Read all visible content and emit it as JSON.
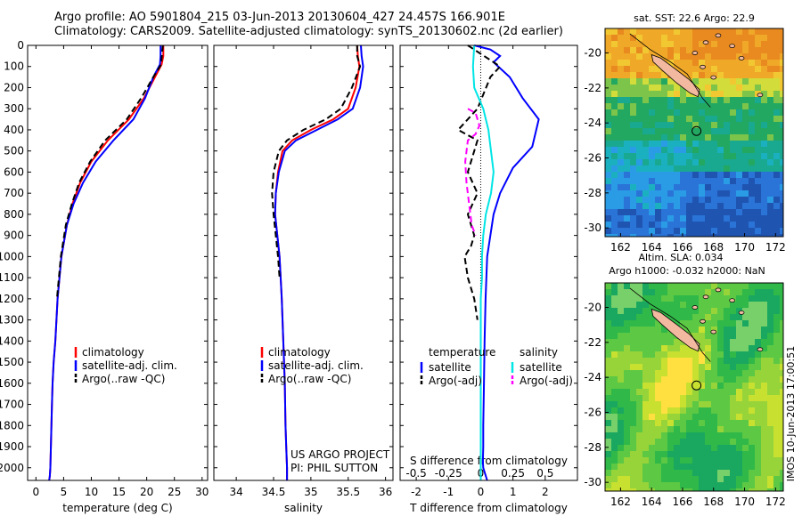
{
  "title_line1": "Argo profile: AO 5901804_215 03-Jun-2013 20130604_427 24.457S 166.901E",
  "title_line2": "Climatology: CARS2009. Satellite-adjusted climatology: synTS_20130602.nc (2d earlier)",
  "watermark": "IMOS 10-Jun-2013 17:00:51",
  "colors": {
    "climatology": "#ff0000",
    "satellite": "#0000ff",
    "argo": "#000000",
    "salinity_satellite": "#00e5e5",
    "salinity_argo": "#ff00ff"
  },
  "chart_data": [
    {
      "type": "line",
      "xlabel": "temperature (deg C)",
      "ylabel": "",
      "xlim": [
        -1.5,
        31
      ],
      "ylim": [
        2060,
        0
      ],
      "xticks": [
        "0",
        "5",
        "10",
        "15",
        "20",
        "25",
        "30"
      ],
      "yticks": [
        "0",
        "100",
        "200",
        "300",
        "400",
        "500",
        "600",
        "700",
        "800",
        "900",
        "1000",
        "1100",
        "1200",
        "1300",
        "1400",
        "1500",
        "1600",
        "1700",
        "1800",
        "1900",
        "2000"
      ],
      "legend": [
        "climatology",
        "satellite-adj. clim.",
        "Argo(..raw -QC)"
      ],
      "legend_position": "lower-middle",
      "series": [
        {
          "name": "climatology",
          "style": "solid",
          "color": "#ff0000",
          "x": [
            23.0,
            23.0,
            22.7,
            21.5,
            19.5,
            16.8,
            13.0,
            10.0,
            8.0,
            6.6,
            5.6,
            4.6,
            3.9,
            3.5,
            3.2,
            3.0,
            2.9,
            2.8,
            2.7,
            2.6,
            2.5,
            2.4
          ],
          "y": [
            0,
            50,
            90,
            150,
            250,
            350,
            450,
            550,
            650,
            750,
            850,
            1000,
            1200,
            1400,
            1500,
            1600,
            1700,
            1800,
            1900,
            2000,
            2040,
            2060
          ]
        },
        {
          "name": "satellite-adj. clim.",
          "style": "solid",
          "color": "#0000ff",
          "x": [
            22.5,
            22.5,
            22.4,
            21.2,
            19.7,
            17.6,
            14.0,
            10.8,
            8.5,
            6.8,
            5.6,
            4.6,
            3.9,
            3.5,
            3.2,
            3.0,
            2.9,
            2.8,
            2.7,
            2.6,
            2.5,
            2.4
          ],
          "y": [
            0,
            50,
            90,
            150,
            250,
            350,
            450,
            550,
            650,
            750,
            850,
            1000,
            1200,
            1400,
            1500,
            1600,
            1700,
            1800,
            1900,
            2000,
            2040,
            2060
          ]
        },
        {
          "name": "Argo(..raw -QC)",
          "style": "dashed",
          "color": "#000000",
          "x": [
            22.9,
            22.8,
            22.6,
            21.2,
            19.0,
            16.4,
            12.5,
            9.8,
            7.8,
            6.5,
            5.4,
            4.5,
            3.8
          ],
          "y": [
            0,
            30,
            90,
            150,
            250,
            350,
            450,
            550,
            650,
            750,
            850,
            1000,
            1200
          ]
        }
      ]
    },
    {
      "type": "line",
      "xlabel": "salinity",
      "ylabel": "",
      "xlim": [
        33.7,
        36.1
      ],
      "ylim": [
        2060,
        0
      ],
      "xticks": [
        "34",
        "34.5",
        "35",
        "35.5",
        "36"
      ],
      "legend": [
        "climatology",
        "satellite-adj. clim.",
        "Argo(..raw -QC)"
      ],
      "legend_position": "lower-middle",
      "annotations": [
        "US ARGO PROJECT",
        "PI: PHIL SUTTON"
      ],
      "series": [
        {
          "name": "climatology",
          "style": "solid",
          "color": "#ff0000",
          "x": [
            35.62,
            35.63,
            35.65,
            35.6,
            35.5,
            35.3,
            35.0,
            34.75,
            34.62,
            34.56,
            34.53,
            34.52,
            34.55,
            34.58,
            34.61,
            34.63,
            34.65,
            34.66,
            34.67,
            34.68,
            34.68
          ],
          "y": [
            0,
            50,
            100,
            200,
            300,
            350,
            400,
            450,
            500,
            600,
            700,
            800,
            900,
            1000,
            1200,
            1400,
            1600,
            1800,
            1900,
            2000,
            2060
          ]
        },
        {
          "name": "satellite-adj. clim.",
          "style": "solid",
          "color": "#0000ff",
          "x": [
            35.67,
            35.68,
            35.7,
            35.66,
            35.56,
            35.36,
            35.08,
            34.8,
            34.65,
            34.57,
            34.53,
            34.52,
            34.55,
            34.58,
            34.61,
            34.63,
            34.65,
            34.66,
            34.67,
            34.68,
            34.68
          ],
          "y": [
            0,
            50,
            100,
            200,
            300,
            350,
            400,
            450,
            500,
            600,
            700,
            800,
            900,
            1000,
            1200,
            1400,
            1600,
            1800,
            1900,
            2000,
            2060
          ]
        },
        {
          "name": "Argo(..raw -QC)",
          "style": "dashed",
          "color": "#000000",
          "x": [
            35.62,
            35.62,
            35.66,
            35.55,
            35.4,
            35.2,
            34.9,
            34.68,
            34.57,
            34.5,
            34.48,
            34.5,
            34.53,
            34.56,
            34.58
          ],
          "y": [
            0,
            50,
            100,
            200,
            300,
            350,
            400,
            450,
            500,
            600,
            700,
            800,
            900,
            1000,
            1100
          ]
        }
      ]
    },
    {
      "type": "line",
      "xlabel": "T difference from climatology",
      "xlabel_top": "S difference from climatology",
      "xlim": [
        -2.5,
        3.0
      ],
      "s_xlim": [
        -0.625,
        0.75
      ],
      "ylim": [
        2060,
        0
      ],
      "xticks": [
        "-2",
        "-1",
        "0",
        "1",
        "2"
      ],
      "s_xticks": [
        "-0.5",
        "-0.25",
        "0",
        "0.25",
        "0.5"
      ],
      "legend_groups": [
        {
          "heading": "temperature",
          "items": [
            "satellite",
            "Argo(-adj)"
          ]
        },
        {
          "heading": "salinity",
          "items": [
            "satellite",
            "Argo(-adj)"
          ]
        }
      ],
      "legend_position": "lower-middle",
      "series": [
        {
          "name": "temperature satellite",
          "style": "solid",
          "color": "#0000ff",
          "x": [
            -0.2,
            0.3,
            0.6,
            0.4,
            0.9,
            1.3,
            1.8,
            1.6,
            1.0,
            0.6,
            0.4,
            0.3,
            0.2,
            0.15,
            0.12,
            0.1,
            0.08,
            0.08,
            0.07,
            0.07,
            0.08,
            0.2
          ],
          "y": [
            0,
            20,
            50,
            80,
            150,
            250,
            350,
            480,
            580,
            700,
            800,
            900,
            1000,
            1200,
            1400,
            1600,
            1800,
            1900,
            1950,
            1980,
            2000,
            2060
          ]
        },
        {
          "name": "temperature Argo(-adj)",
          "style": "dashed",
          "color": "#000000",
          "x": [
            -0.4,
            0.0,
            0.6,
            0.3,
            -0.1,
            -0.7,
            -0.1,
            -0.4,
            -0.1,
            -0.4,
            -0.2,
            -0.3,
            -0.5,
            -0.4,
            -0.2,
            -0.1
          ],
          "y": [
            0,
            40,
            100,
            150,
            300,
            400,
            450,
            600,
            700,
            800,
            900,
            950,
            1000,
            1100,
            1200,
            1300
          ]
        },
        {
          "name": "salinity satellite",
          "style": "solid",
          "color": "#00e5e5",
          "x": [
            -0.05,
            -0.06,
            -0.05,
            0.02,
            0.06,
            0.08,
            0.1,
            0.08,
            0.04,
            0.02,
            0.01,
            0.01,
            0.0,
            0.0,
            0.0,
            0.0,
            0.0,
            0.0,
            0.0,
            0.0
          ],
          "y": [
            0,
            100,
            200,
            300,
            400,
            500,
            600,
            700,
            800,
            900,
            1000,
            1100,
            1200,
            1400,
            1600,
            1700,
            1800,
            1900,
            2000,
            2060
          ]
        },
        {
          "name": "salinity Argo(-adj)",
          "style": "dashed",
          "color": "#ff00ff",
          "x": [
            -0.1,
            -0.04,
            -0.01,
            -0.04,
            -0.1,
            -0.12,
            -0.11,
            -0.09,
            -0.07,
            -0.04
          ],
          "y": [
            300,
            320,
            380,
            420,
            450,
            550,
            650,
            750,
            850,
            900
          ]
        }
      ]
    },
    {
      "type": "heatmap",
      "title": "sat. SST: 22.6  Argo: 22.9",
      "xticks": [
        "162",
        "164",
        "166",
        "168",
        "170",
        "172"
      ],
      "yticks": [
        "-20",
        "-22",
        "-24",
        "-26",
        "-28",
        "-30"
      ],
      "xlim": [
        161,
        172.5
      ],
      "ylim": [
        -30.5,
        -18.6
      ],
      "marker": {
        "lon": 166.9,
        "lat": -24.46
      },
      "sst_bands": [
        {
          "lat_from": -18.6,
          "lat_to": -20.5,
          "color": "#f0a020"
        },
        {
          "lat_from": -20.5,
          "lat_to": -21.5,
          "color": "#f2c832"
        },
        {
          "lat_from": -21.5,
          "lat_to": -22.5,
          "color": "#d9e23a"
        },
        {
          "lat_from": -22.5,
          "lat_to": -24.8,
          "color": "#23a862"
        },
        {
          "lat_from": -24.8,
          "lat_to": -26.5,
          "color": "#1bb0a8"
        },
        {
          "lat_from": -26.5,
          "lat_to": -30.5,
          "color": "#2a86e0"
        }
      ]
    },
    {
      "type": "heatmap",
      "title": "Altim. SLA: 0.034",
      "subtitle": "Argo h1000: -0.032 h2000: NaN",
      "xticks": [
        "162",
        "164",
        "166",
        "168",
        "170",
        "172"
      ],
      "yticks": [
        "-20",
        "-22",
        "-24",
        "-26",
        "-28",
        "-30"
      ],
      "xlim": [
        161,
        172.5
      ],
      "ylim": [
        -30.5,
        -18.6
      ],
      "marker": {
        "lon": 166.9,
        "lat": -24.46
      }
    }
  ]
}
